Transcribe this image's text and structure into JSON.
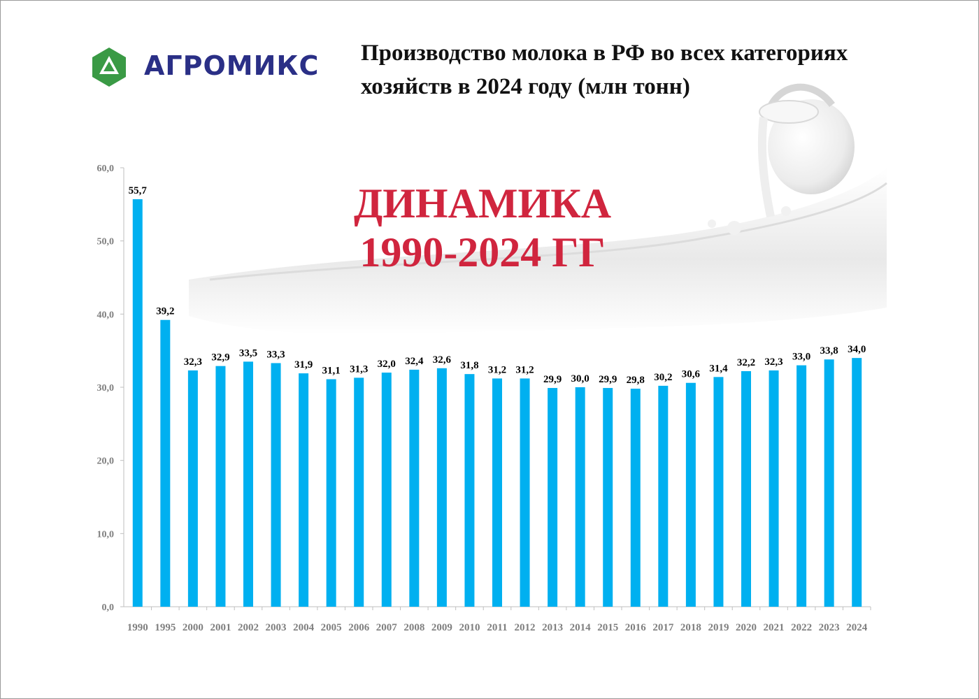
{
  "header": {
    "logo_text": "АГРОМИКС",
    "title_line1": "Производство молока в РФ во всех категориях",
    "title_line2": "хозяйств в 2024 году (млн тонн)"
  },
  "overlay": {
    "line1": "ДИНАМИКА",
    "line2": "1990-2024 ГГ"
  },
  "colors": {
    "bar": "#00b0f0",
    "overlay_text": "#d0253e",
    "logo_green": "#3a9a45",
    "logo_text": "#2a2f86",
    "axis_text": "#7f7f7f"
  },
  "chart_data": {
    "type": "bar",
    "categories": [
      "1990",
      "1995",
      "2000",
      "2001",
      "2002",
      "2003",
      "2004",
      "2005",
      "2006",
      "2007",
      "2008",
      "2009",
      "2010",
      "2011",
      "2012",
      "2013",
      "2014",
      "2015",
      "2016",
      "2017",
      "2018",
      "2019",
      "2020",
      "2021",
      "2022",
      "2023",
      "2024"
    ],
    "values": [
      55.7,
      39.2,
      32.3,
      32.9,
      33.5,
      33.3,
      31.9,
      31.1,
      31.3,
      32.0,
      32.4,
      32.6,
      31.8,
      31.2,
      31.2,
      29.9,
      30.0,
      29.9,
      29.8,
      30.2,
      30.6,
      31.4,
      32.2,
      32.3,
      33.0,
      33.8,
      34.0
    ],
    "data_labels": [
      "55,7",
      "39,2",
      "32,3",
      "32,9",
      "33,5",
      "33,3",
      "31,9",
      "31,1",
      "31,3",
      "32,0",
      "32,4",
      "32,6",
      "31,8",
      "31,2",
      "31,2",
      "29,9",
      "30,0",
      "29,9",
      "29,8",
      "30,2",
      "30,6",
      "31,4",
      "32,2",
      "32,3",
      "33,0",
      "33,8",
      "34,0"
    ],
    "y_ticks": [
      "0,0",
      "10,0",
      "20,0",
      "30,0",
      "40,0",
      "50,0",
      "60,0"
    ],
    "ylim": [
      0,
      60
    ],
    "grid": false
  }
}
